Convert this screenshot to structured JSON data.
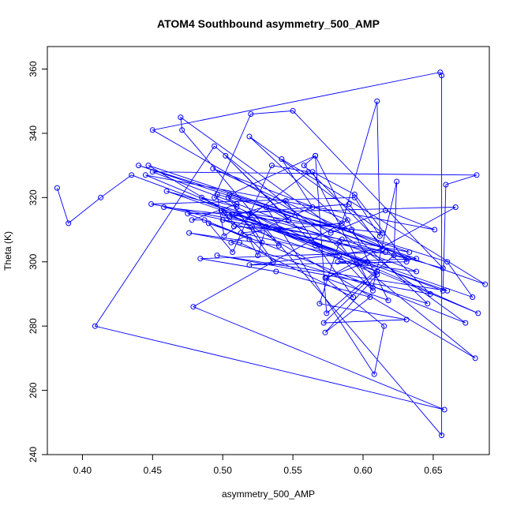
{
  "chart_data": {
    "type": "line",
    "title": "ATOM4 Southbound asymmetry_500_AMP",
    "xlabel": "asymmetry_500_AMP",
    "ylabel": "Theta (K)",
    "xlim": [
      0.375,
      0.69
    ],
    "ylim": [
      240,
      367
    ],
    "x_ticks": [
      0.4,
      0.45,
      0.5,
      0.55,
      0.6,
      0.65
    ],
    "x_tick_labels": [
      "0.40",
      "0.45",
      "0.50",
      "0.55",
      "0.60",
      "0.65"
    ],
    "y_ticks": [
      240,
      260,
      280,
      300,
      320,
      340,
      360
    ],
    "y_tick_labels": [
      "240",
      "260",
      "280",
      "300",
      "320",
      "340",
      "360"
    ],
    "grid": false,
    "line_color": "#0000ff",
    "marker": "open-circle",
    "series": [
      {
        "x": [
          0.382,
          0.39,
          0.413,
          0.435,
          0.657,
          0.659,
          0.681,
          0.45,
          0.638,
          0.582,
          0.638,
          0.44,
          0.66,
          0.678,
          0.46,
          0.657,
          0.55,
          0.52,
          0.494,
          0.682,
          0.445,
          0.651,
          0.616,
          0.577,
          0.45,
          0.655,
          0.656,
          0.656,
          0.471,
          0.47,
          0.673,
          0.475,
          0.666,
          0.574,
          0.603,
          0.501,
          0.66,
          0.496,
          0.648,
          0.558,
          0.566,
          0.505,
          0.687,
          0.542,
          0.564,
          0.506,
          0.646,
          0.519,
          0.614,
          0.458,
          0.632,
          0.493,
          0.589,
          0.479,
          0.658,
          0.409,
          0.494,
          0.68,
          0.447,
          0.633,
          0.449,
          0.594,
          0.612,
          0.61,
          0.585,
          0.513,
          0.583,
          0.607,
          0.564,
          0.594,
          0.631,
          0.519,
          0.614,
          0.59,
          0.51,
          0.61,
          0.573,
          0.605,
          0.538,
          0.484,
          0.616,
          0.5,
          0.61,
          0.572,
          0.631,
          0.569,
          0.583,
          0.607,
          0.624,
          0.622,
          0.574,
          0.566,
          0.618,
          0.573,
          0.615,
          0.608,
          0.531,
          0.547,
          0.502,
          0.566,
          0.51,
          0.485,
          0.521,
          0.528,
          0.49,
          0.507,
          0.535,
          0.561,
          0.501,
          0.496,
          0.592,
          0.519,
          0.54,
          0.476,
          0.512,
          0.593,
          0.545,
          0.505,
          0.541,
          0.508,
          0.499,
          0.536,
          0.504,
          0.51,
          0.478,
          0.487,
          0.519,
          0.525,
          0.531,
          0.585
        ],
        "y": [
          323,
          312,
          320,
          327,
          291,
          324,
          327,
          328,
          297,
          300,
          301,
          330,
          300,
          289,
          322,
          298,
          347,
          346,
          320,
          284,
          327,
          310,
          316,
          309,
          341,
          359,
          358,
          246,
          341,
          345,
          281,
          315,
          317,
          295,
          300,
          315,
          291,
          302,
          290,
          330,
          333,
          321,
          293,
          332,
          317,
          306,
          287,
          339,
          309,
          317,
          301,
          329,
          313,
          286,
          254,
          280,
          336,
          270,
          330,
          303,
          318,
          320,
          308,
          350,
          312,
          309,
          302,
          291,
          328,
          321,
          300,
          299,
          304,
          318,
          315,
          296,
          278,
          289,
          297,
          301,
          303,
          313,
          297,
          281,
          282,
          287,
          306,
          292,
          325,
          302,
          284,
          333,
          288,
          295,
          280,
          265,
          317,
          313,
          333,
          305,
          317,
          320,
          311,
          306,
          312,
          303,
          330,
          328,
          308,
          321,
          310,
          315,
          305,
          309,
          306,
          289,
          319,
          314,
          310,
          311,
          316,
          300,
          320,
          318,
          313,
          313,
          307,
          302,
          311,
          307
        ]
      }
    ]
  }
}
